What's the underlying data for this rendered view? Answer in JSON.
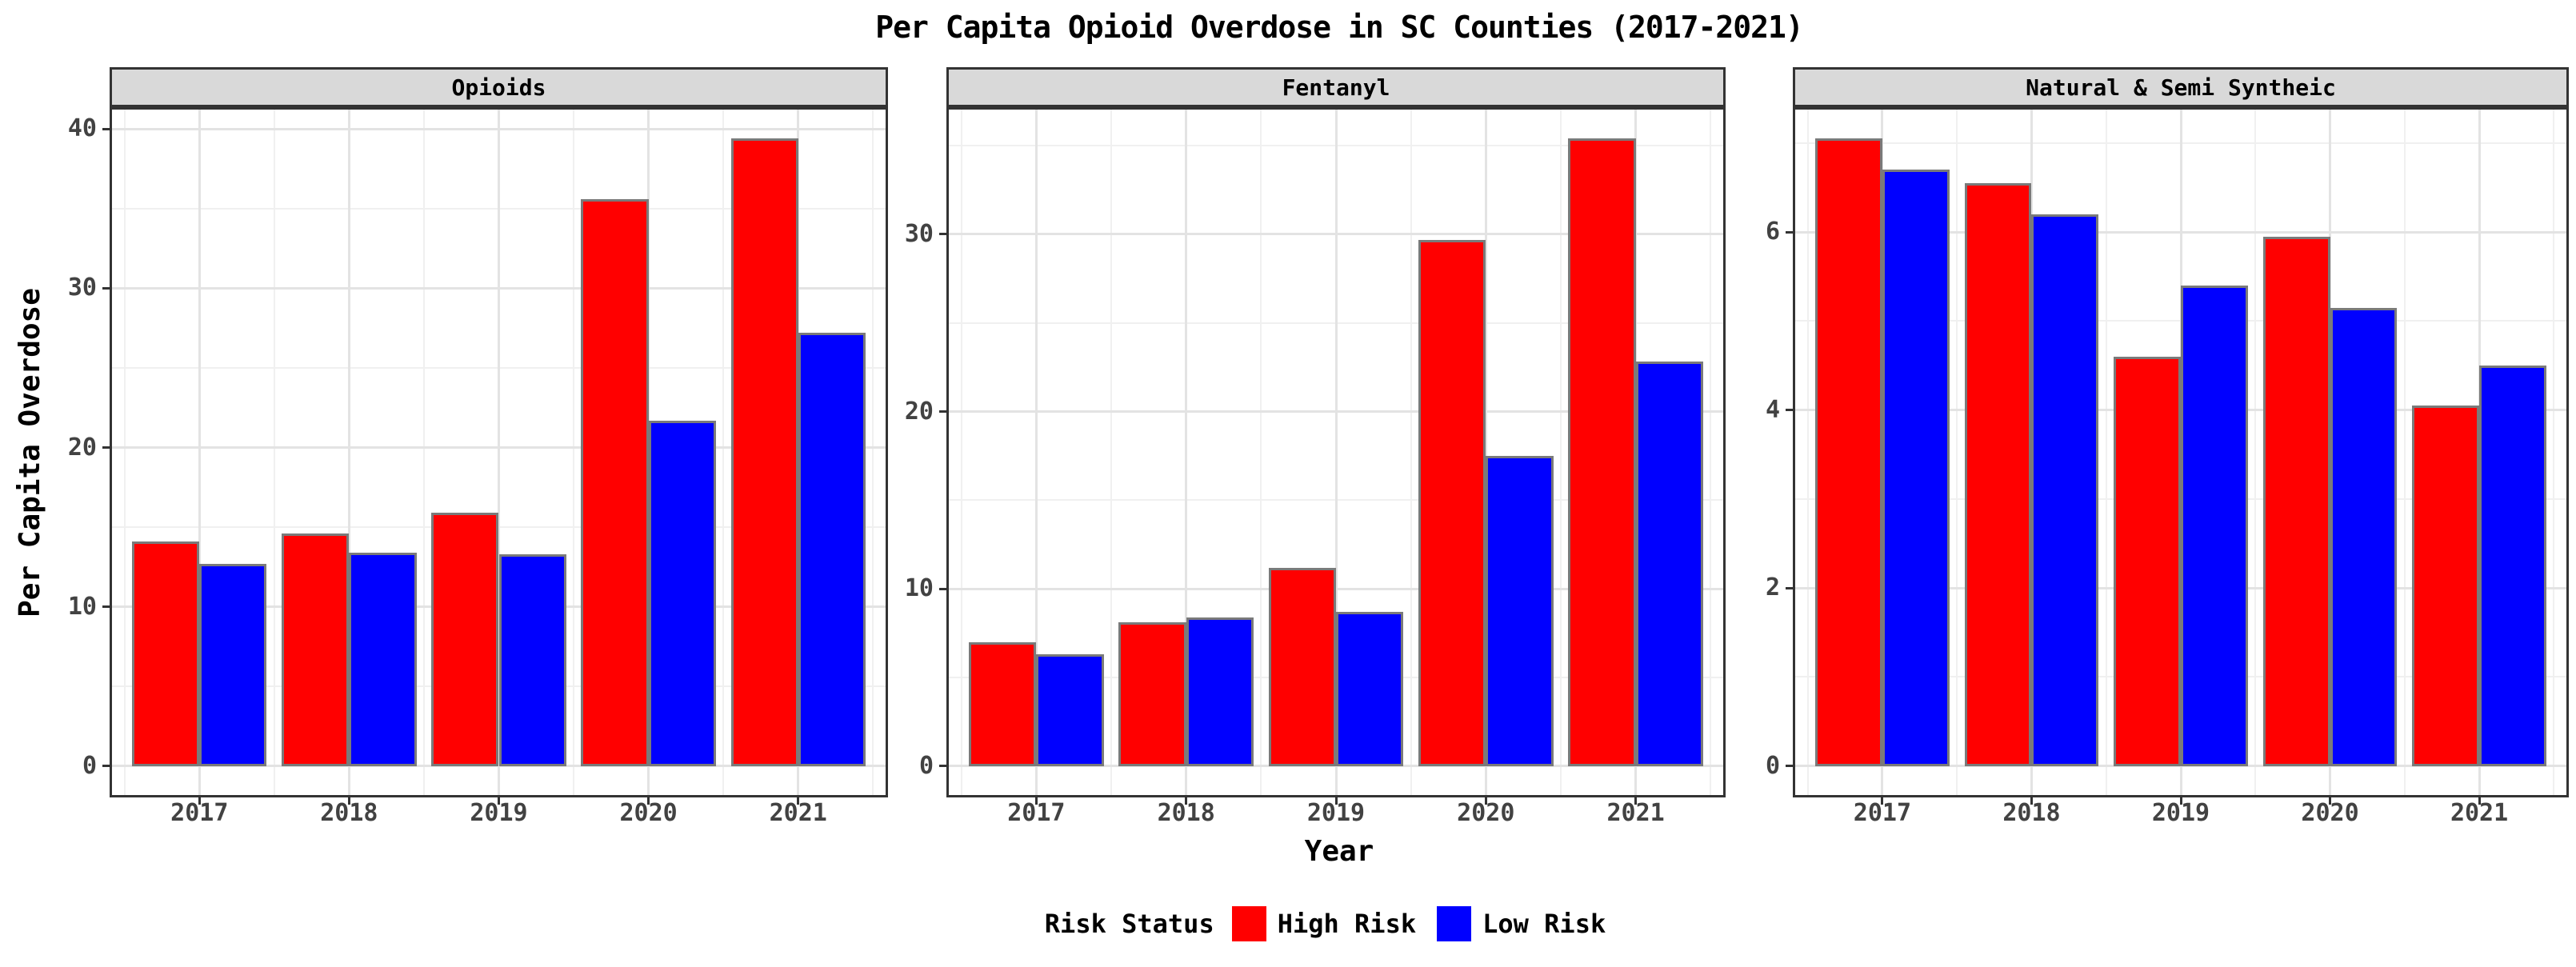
{
  "chart_data": {
    "type": "bar",
    "grouped": true,
    "faceted": true,
    "title": "Per Capita Opioid Overdose in SC Counties (2017-2021)",
    "xlabel": "Year",
    "ylabel": "Per Capita Overdose",
    "categories": [
      "2017",
      "2018",
      "2019",
      "2020",
      "2021"
    ],
    "legend": {
      "title": "Risk Status",
      "position": "bottom",
      "entries": [
        {
          "label": "High Risk",
          "color": "#FF0000"
        },
        {
          "label": "Low Risk",
          "color": "#0000FF"
        }
      ]
    },
    "bar_outline_color": "#7A7A7A",
    "grid": {
      "major_color": "#E3E3E3",
      "minor_color": "#F0F0F0"
    },
    "facets": [
      {
        "label": "Opioids",
        "ylim": [
          0,
          40
        ],
        "yticks": [
          0,
          10,
          20,
          30,
          40
        ],
        "series": [
          {
            "name": "High Risk",
            "color": "#FF0000",
            "values": [
              14.1,
              14.6,
              15.9,
              35.6,
              39.4
            ]
          },
          {
            "name": "Low Risk",
            "color": "#0000FF",
            "values": [
              12.7,
              13.4,
              13.3,
              21.7,
              27.2
            ]
          }
        ]
      },
      {
        "label": "Fentanyl",
        "ylim": [
          0,
          35.4
        ],
        "yticks": [
          0,
          10,
          20,
          30
        ],
        "series": [
          {
            "name": "High Risk",
            "color": "#FF0000",
            "values": [
              7.0,
              8.1,
              11.2,
              29.7,
              35.4
            ]
          },
          {
            "name": "Low Risk",
            "color": "#0000FF",
            "values": [
              6.3,
              8.4,
              8.7,
              17.5,
              22.8
            ]
          }
        ]
      },
      {
        "label": "Natural & Semi Syntheic",
        "ylim": [
          0,
          7.05
        ],
        "yticks": [
          0,
          2,
          4,
          6
        ],
        "series": [
          {
            "name": "High Risk",
            "color": "#FF0000",
            "values": [
              7.05,
              6.55,
              4.6,
              5.95,
              4.05
            ]
          },
          {
            "name": "Low Risk",
            "color": "#0000FF",
            "values": [
              6.7,
              6.2,
              5.4,
              5.15,
              4.5
            ]
          }
        ]
      }
    ]
  }
}
